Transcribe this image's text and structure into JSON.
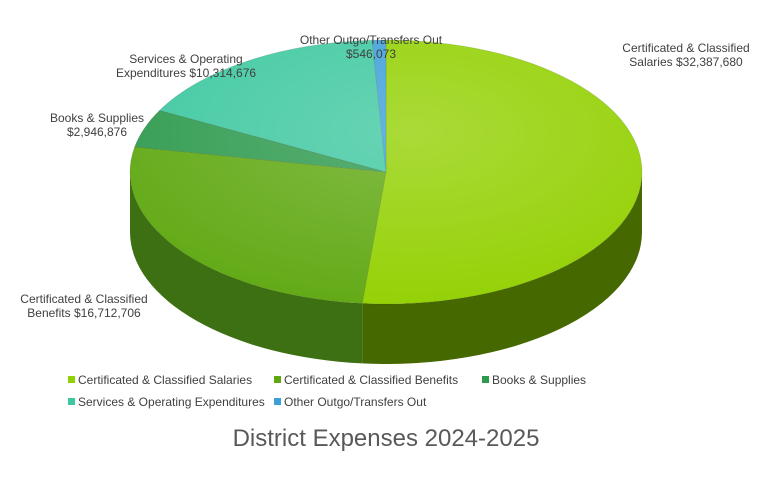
{
  "chart_data": {
    "type": "pie",
    "title": "District Expenses 2024-2025",
    "categories": [
      "Certificated & Classified Salaries",
      "Certificated & Classified Benefits",
      "Books & Supplies",
      "Services & Operating Expenditures",
      "Other Outgo/Transfers Out"
    ],
    "values": [
      32387680,
      16712706,
      2946876,
      10314676,
      546073
    ],
    "data_labels": [
      [
        "Certificated & Classified",
        "Salaries  $32,387,680"
      ],
      [
        "Certificated & Classified",
        "Benefits  $16,712,706"
      ],
      [
        "Books & Supplies",
        "$2,946,876"
      ],
      [
        "Services & Operating",
        "Expenditures  $10,314,676"
      ],
      [
        "Other Outgo/Transfers Out",
        "$546,073"
      ]
    ],
    "colors": {
      "top": [
        "#92d000",
        "#5fa811",
        "#2e9a4e",
        "#3ec8a0",
        "#3c9fd8"
      ],
      "side": [
        "#466800",
        "#3d7012",
        "#1e6a36",
        "#2a8c6e",
        "#2a6f98"
      ]
    },
    "legend_position": "bottom",
    "style": "3d-pie"
  }
}
